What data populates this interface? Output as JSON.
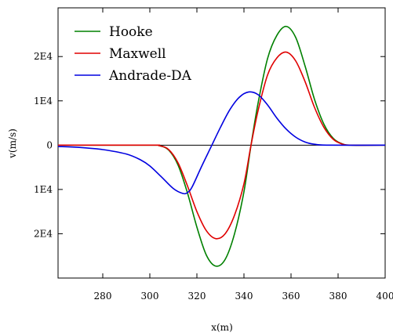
{
  "chart_data": {
    "type": "line",
    "xlabel": "x(m)",
    "ylabel": "v(m/s)",
    "xlim": [
      261,
      400
    ],
    "ylim": [
      -30000,
      31000
    ],
    "x_ticks": [
      {
        "value": 280,
        "label": "280"
      },
      {
        "value": 300,
        "label": "300"
      },
      {
        "value": 320,
        "label": "320"
      },
      {
        "value": 340,
        "label": "340"
      },
      {
        "value": 360,
        "label": "360"
      },
      {
        "value": 380,
        "label": "380"
      },
      {
        "value": 400,
        "label": "400"
      }
    ],
    "y_ticks": [
      {
        "value": 20000,
        "label": "2E4"
      },
      {
        "value": 10000,
        "label": "1E4"
      },
      {
        "value": 0,
        "label": "0"
      },
      {
        "value": -10000,
        "label": "1E4"
      },
      {
        "value": -20000,
        "label": "2E4"
      }
    ],
    "zero_line": true,
    "grid": false,
    "legend_position": "top-left",
    "series": [
      {
        "name": "Hooke",
        "color": "#008000",
        "points": [
          [
            261,
            0
          ],
          [
            300,
            0
          ],
          [
            304,
            -120
          ],
          [
            308,
            -1100
          ],
          [
            312,
            -4500
          ],
          [
            316,
            -10800
          ],
          [
            320,
            -18500
          ],
          [
            324,
            -24800
          ],
          [
            328,
            -27300
          ],
          [
            332,
            -25800
          ],
          [
            336,
            -20000
          ],
          [
            340,
            -10500
          ],
          [
            343,
            0
          ],
          [
            346,
            9500
          ],
          [
            350,
            19500
          ],
          [
            354,
            24800
          ],
          [
            358,
            26800
          ],
          [
            362,
            24300
          ],
          [
            366,
            17800
          ],
          [
            370,
            10300
          ],
          [
            374,
            4700
          ],
          [
            378,
            1500
          ],
          [
            382,
            260
          ],
          [
            386,
            0
          ],
          [
            400,
            0
          ]
        ]
      },
      {
        "name": "Maxwell",
        "color": "#e00000",
        "points": [
          [
            261,
            0
          ],
          [
            300,
            0
          ],
          [
            304,
            -120
          ],
          [
            308,
            -1000
          ],
          [
            312,
            -4000
          ],
          [
            316,
            -9200
          ],
          [
            320,
            -15000
          ],
          [
            324,
            -19300
          ],
          [
            328,
            -21100
          ],
          [
            332,
            -20000
          ],
          [
            336,
            -15800
          ],
          [
            340,
            -8700
          ],
          [
            343,
            0
          ],
          [
            346,
            7800
          ],
          [
            350,
            15800
          ],
          [
            354,
            19700
          ],
          [
            358,
            21000
          ],
          [
            362,
            19000
          ],
          [
            366,
            14300
          ],
          [
            370,
            8500
          ],
          [
            374,
            4000
          ],
          [
            378,
            1300
          ],
          [
            382,
            220
          ],
          [
            386,
            0
          ],
          [
            400,
            0
          ]
        ]
      },
      {
        "name": "Andrade-DA",
        "color": "#0000e0",
        "points": [
          [
            261,
            -300
          ],
          [
            270,
            -500
          ],
          [
            280,
            -1000
          ],
          [
            290,
            -2000
          ],
          [
            296,
            -3300
          ],
          [
            300,
            -4700
          ],
          [
            305,
            -7200
          ],
          [
            310,
            -9800
          ],
          [
            314,
            -10900
          ],
          [
            316,
            -10700
          ],
          [
            318,
            -9400
          ],
          [
            322,
            -4800
          ],
          [
            326,
            -400
          ],
          [
            330,
            4000
          ],
          [
            334,
            8000
          ],
          [
            338,
            10800
          ],
          [
            342,
            12000
          ],
          [
            346,
            11400
          ],
          [
            350,
            9100
          ],
          [
            354,
            6100
          ],
          [
            358,
            3600
          ],
          [
            362,
            1800
          ],
          [
            366,
            700
          ],
          [
            370,
            200
          ],
          [
            376,
            0
          ],
          [
            400,
            0
          ]
        ]
      }
    ]
  }
}
